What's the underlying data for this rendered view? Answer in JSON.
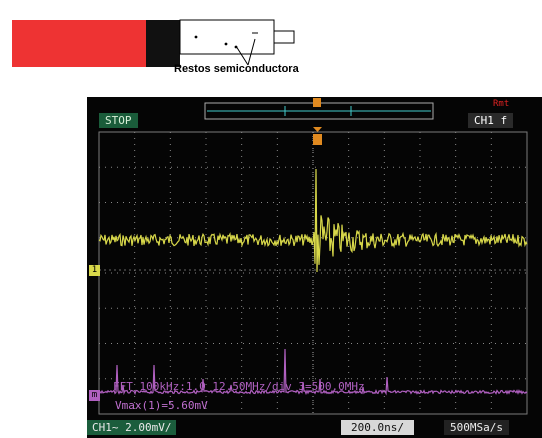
{
  "diagram": {
    "caption": "Restos semiconductora",
    "colors": {
      "red": "#ee3333",
      "black": "#111111"
    }
  },
  "scope": {
    "status": "STOP",
    "remote": "Rmt",
    "trigger_channel": "CH1",
    "trigger_slope": "f",
    "trigger_marker": "T",
    "channel_setting": "CH1~ 2.00mV/",
    "timebase": "200.0ns/",
    "sample_rate": "500MSa/s",
    "fft_info": "FFT 100kHz:1.0 12.50MHz/div 3=500.0MHz",
    "measurement": "Vmax(1)=5.60mV",
    "ch1_marker": "1",
    "math_marker": "m",
    "colors": {
      "ch1": "#d8d84a",
      "math": "#b060c0",
      "grid": "#8a8a8a"
    }
  }
}
